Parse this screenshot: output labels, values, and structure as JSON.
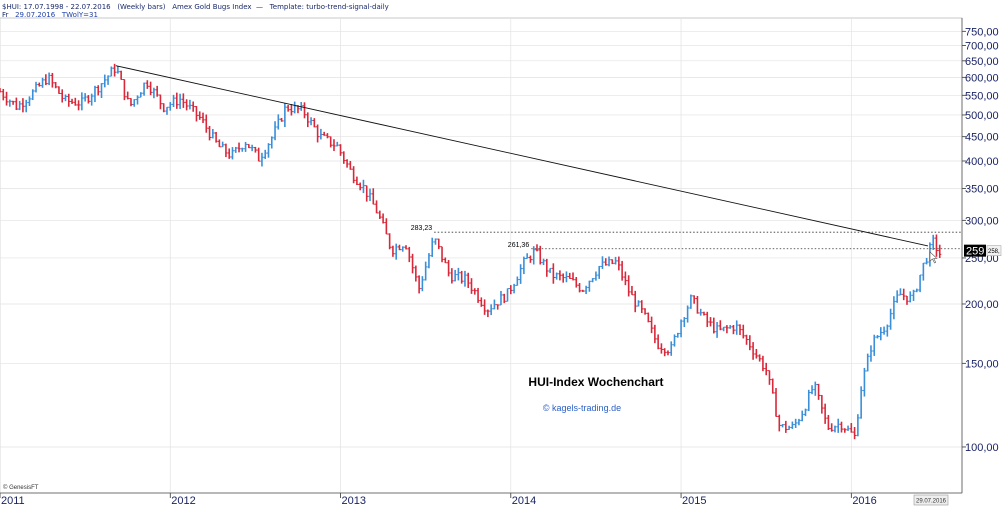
{
  "header": {
    "symbol_range": "$HUI: 17.07.1998 - 22.07.2016",
    "bar_type": "(Weekly bars)",
    "instrument": "Amex Gold Bugs Index",
    "template": "Template: turbo-trend-signal-daily",
    "freq": "Fr",
    "date": "29.07.2016",
    "indicator": "TWolY=31"
  },
  "footer": {
    "provider": "© GenesisFT",
    "date_box": "29.07.2016"
  },
  "chart_data": {
    "type": "bar",
    "title": "HUI-Index Wochenchart",
    "subtitle": "© kagels-trading.de",
    "scale": "log",
    "ylim": [
      80,
      800
    ],
    "xlim": [
      2011.0,
      2016.65
    ],
    "y_ticks": [
      {
        "value": 750,
        "label": "750,00"
      },
      {
        "value": 700,
        "label": "700,00"
      },
      {
        "value": 650,
        "label": "650,00"
      },
      {
        "value": 600,
        "label": "600,00"
      },
      {
        "value": 550,
        "label": "550,00"
      },
      {
        "value": 500,
        "label": "500,00"
      },
      {
        "value": 450,
        "label": "450,00"
      },
      {
        "value": 400,
        "label": "400,00"
      },
      {
        "value": 350,
        "label": "350,00"
      },
      {
        "value": 300,
        "label": "300,00"
      },
      {
        "value": 250,
        "label": "250,00"
      },
      {
        "value": 200,
        "label": "200,00"
      },
      {
        "value": 150,
        "label": "150,00"
      },
      {
        "value": 100,
        "label": "100,00"
      }
    ],
    "x_ticks": [
      {
        "value": 2011.0,
        "label": "2011"
      },
      {
        "value": 2012.0,
        "label": "2012"
      },
      {
        "value": 2013.0,
        "label": "2013"
      },
      {
        "value": 2014.0,
        "label": "2014"
      },
      {
        "value": 2015.0,
        "label": "2015"
      },
      {
        "value": 2016.0,
        "label": "2016"
      }
    ],
    "current_price": {
      "value": 259,
      "label": "259",
      "secondary_label": "258,"
    },
    "trendline": [
      {
        "x": 2011.68,
        "y": 635
      },
      {
        "x": 2016.45,
        "y": 265
      }
    ],
    "horizontal_lines": [
      {
        "value": 283.23,
        "label": "283,23",
        "x_start": 2013.55
      },
      {
        "value": 261.36,
        "label": "261,36",
        "x_start": 2014.12
      }
    ],
    "price_path": [
      {
        "x": 2011.0,
        "y": 560
      },
      {
        "x": 2011.1,
        "y": 520
      },
      {
        "x": 2011.2,
        "y": 560
      },
      {
        "x": 2011.28,
        "y": 600
      },
      {
        "x": 2011.38,
        "y": 535
      },
      {
        "x": 2011.48,
        "y": 530
      },
      {
        "x": 2011.58,
        "y": 575
      },
      {
        "x": 2011.68,
        "y": 630
      },
      {
        "x": 2011.76,
        "y": 520
      },
      {
        "x": 2011.86,
        "y": 590
      },
      {
        "x": 2011.96,
        "y": 520
      },
      {
        "x": 2012.06,
        "y": 540
      },
      {
        "x": 2012.18,
        "y": 490
      },
      {
        "x": 2012.28,
        "y": 430
      },
      {
        "x": 2012.36,
        "y": 410
      },
      {
        "x": 2012.44,
        "y": 440
      },
      {
        "x": 2012.52,
        "y": 405
      },
      {
        "x": 2012.6,
        "y": 450
      },
      {
        "x": 2012.68,
        "y": 520
      },
      {
        "x": 2012.78,
        "y": 510
      },
      {
        "x": 2012.88,
        "y": 450
      },
      {
        "x": 2012.98,
        "y": 430
      },
      {
        "x": 2013.06,
        "y": 380
      },
      {
        "x": 2013.14,
        "y": 350
      },
      {
        "x": 2013.22,
        "y": 310
      },
      {
        "x": 2013.3,
        "y": 260
      },
      {
        "x": 2013.38,
        "y": 270
      },
      {
        "x": 2013.46,
        "y": 215
      },
      {
        "x": 2013.55,
        "y": 275
      },
      {
        "x": 2013.64,
        "y": 230
      },
      {
        "x": 2013.74,
        "y": 225
      },
      {
        "x": 2013.86,
        "y": 195
      },
      {
        "x": 2013.98,
        "y": 210
      },
      {
        "x": 2014.08,
        "y": 245
      },
      {
        "x": 2014.14,
        "y": 258
      },
      {
        "x": 2014.24,
        "y": 230
      },
      {
        "x": 2014.34,
        "y": 225
      },
      {
        "x": 2014.42,
        "y": 215
      },
      {
        "x": 2014.52,
        "y": 240
      },
      {
        "x": 2014.62,
        "y": 245
      },
      {
        "x": 2014.7,
        "y": 210
      },
      {
        "x": 2014.78,
        "y": 190
      },
      {
        "x": 2014.86,
        "y": 165
      },
      {
        "x": 2014.94,
        "y": 160
      },
      {
        "x": 2015.0,
        "y": 185
      },
      {
        "x": 2015.06,
        "y": 205
      },
      {
        "x": 2015.14,
        "y": 185
      },
      {
        "x": 2015.22,
        "y": 175
      },
      {
        "x": 2015.32,
        "y": 180
      },
      {
        "x": 2015.4,
        "y": 165
      },
      {
        "x": 2015.5,
        "y": 145
      },
      {
        "x": 2015.58,
        "y": 110
      },
      {
        "x": 2015.66,
        "y": 110
      },
      {
        "x": 2015.72,
        "y": 120
      },
      {
        "x": 2015.78,
        "y": 135
      },
      {
        "x": 2015.86,
        "y": 110
      },
      {
        "x": 2015.94,
        "y": 112
      },
      {
        "x": 2016.02,
        "y": 105
      },
      {
        "x": 2016.06,
        "y": 135
      },
      {
        "x": 2016.12,
        "y": 165
      },
      {
        "x": 2016.2,
        "y": 180
      },
      {
        "x": 2016.28,
        "y": 210
      },
      {
        "x": 2016.36,
        "y": 205
      },
      {
        "x": 2016.42,
        "y": 240
      },
      {
        "x": 2016.48,
        "y": 270
      },
      {
        "x": 2016.52,
        "y": 255
      }
    ]
  }
}
